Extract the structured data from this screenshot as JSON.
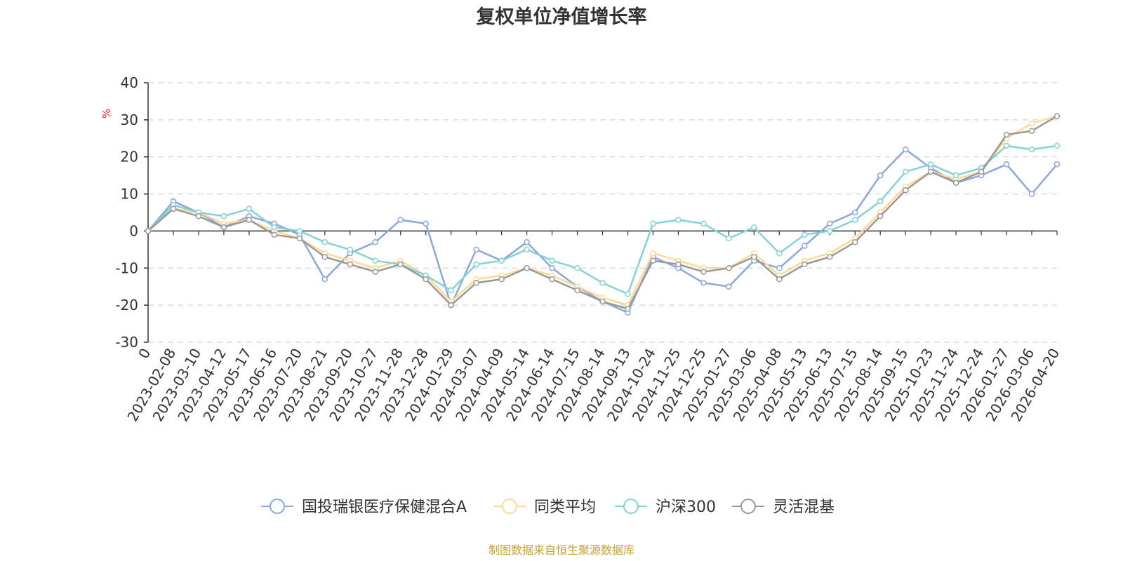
{
  "chart_data": {
    "type": "line",
    "title": "复权单位净值增长率",
    "ylabel": "%",
    "ylim": [
      -30,
      40
    ],
    "yticks": [
      "40",
      "30",
      "20",
      "10",
      "0",
      "-10",
      "-20",
      "-30"
    ],
    "ytick_values": [
      40,
      30,
      20,
      10,
      0,
      -10,
      -20,
      -30
    ],
    "x": [
      "0",
      "2023-02-08",
      "2023-03-10",
      "2023-04-12",
      "2023-05-17",
      "2023-06-16",
      "2023-07-20",
      "2023-08-21",
      "2023-09-20",
      "2023-10-27",
      "2023-11-28",
      "2023-12-28",
      "2024-01-29",
      "2024-03-07",
      "2024-04-09",
      "2024-05-14",
      "2024-06-14",
      "2024-07-15",
      "2024-08-14",
      "2024-09-13",
      "2024-10-24",
      "2024-11-25",
      "2024-12-25",
      "2025-01-27",
      "2025-03-06",
      "2025-04-08",
      "2025-05-13",
      "2025-06-13",
      "2025-07-15",
      "2025-08-14",
      "2025-09-15",
      "2025-10-23",
      "2025-11-24",
      "2025-12-24",
      "2026-01-27",
      "2026-03-06",
      "2026-04-20"
    ],
    "series": [
      {
        "name": "国投瑞银医疗保健混合A",
        "color": "#8ba7db",
        "values": [
          0,
          8,
          5,
          1,
          4,
          2,
          -1,
          -13,
          -6,
          -3,
          3,
          2,
          -20,
          -5,
          -8,
          -3,
          -10,
          -15,
          -19,
          -22,
          -7,
          -10,
          -14,
          -15,
          -8,
          -10,
          -4,
          2,
          5,
          15,
          22,
          17,
          13,
          15,
          18,
          10,
          18
        ]
      },
      {
        "name": "同类平均",
        "color": "#ffd995",
        "values": [
          0,
          6,
          5,
          2,
          3,
          0,
          -2,
          -6,
          -8,
          -10,
          -8,
          -12,
          -19,
          -13,
          -12,
          -10,
          -12,
          -15,
          -18,
          -20,
          -6,
          -8,
          -10,
          -10,
          -6,
          -12,
          -8,
          -6,
          -2,
          5,
          12,
          16,
          14,
          16,
          25,
          29,
          31
        ]
      },
      {
        "name": "沪深300",
        "color": "#82d3d6",
        "values": [
          0,
          7,
          5,
          4,
          6,
          1,
          0,
          -3,
          -5,
          -8,
          -9,
          -12,
          -16,
          -9,
          -8,
          -5,
          -8,
          -10,
          -14,
          -17,
          2,
          3,
          2,
          -2,
          1,
          -6,
          -1,
          0,
          3,
          8,
          16,
          18,
          15,
          17,
          23,
          22,
          23
        ]
      },
      {
        "name": "灵活混基",
        "color": "#999999",
        "values": [
          0,
          6,
          4,
          1,
          3,
          -1,
          -2,
          -7,
          -9,
          -11,
          -9,
          -13,
          -20,
          -14,
          -13,
          -10,
          -13,
          -16,
          -19,
          -21,
          -8,
          -9,
          -11,
          -10,
          -7,
          -13,
          -9,
          -7,
          -3,
          4,
          11,
          16,
          13,
          16,
          26,
          27,
          31
        ]
      }
    ]
  },
  "source": {
    "text": "制图数据来自恒生聚源数据库",
    "color": "#c8a034"
  },
  "colors": {
    "axis": "#333333",
    "unit": "#e02020"
  }
}
